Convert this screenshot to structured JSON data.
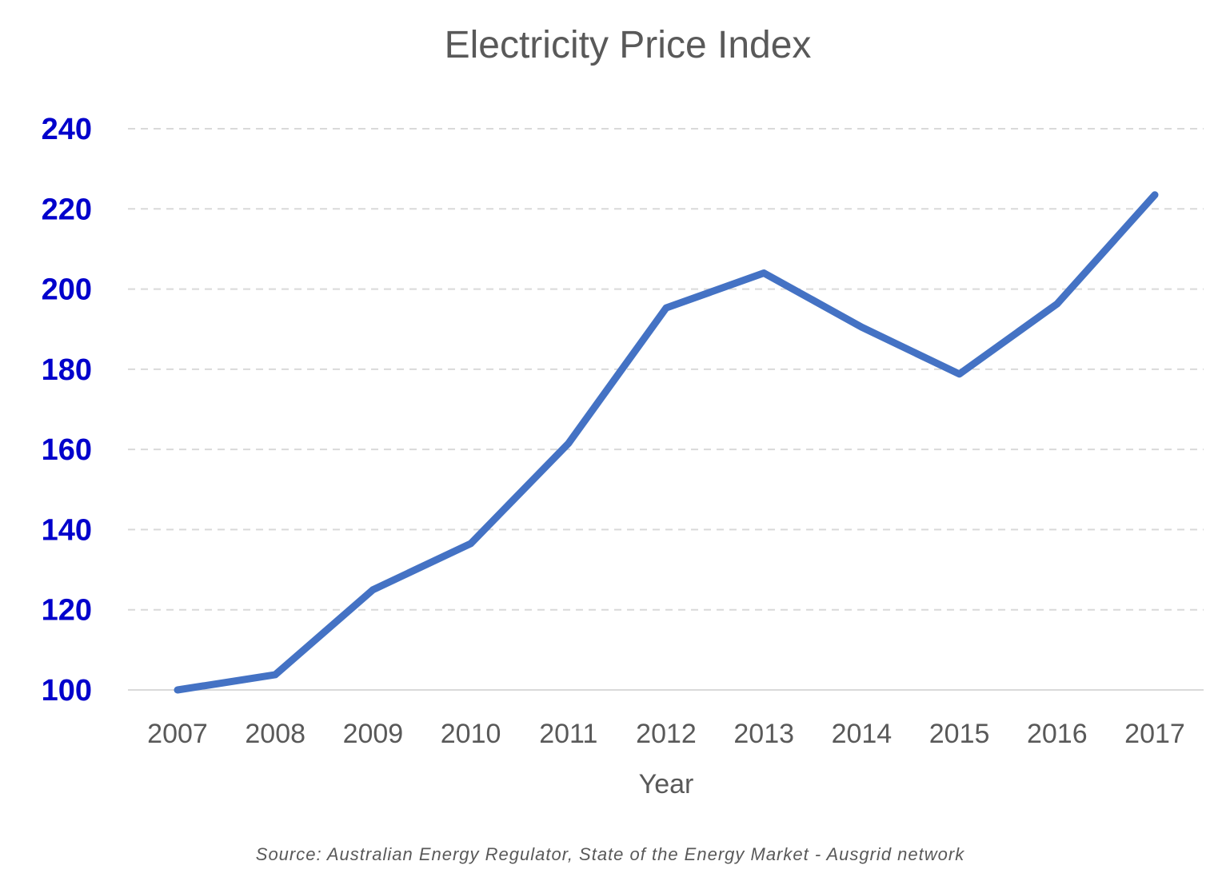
{
  "chart_data": {
    "type": "line",
    "title": "Electricity Price Index",
    "xlabel": "Year",
    "ylabel": "",
    "categories": [
      "2007",
      "2008",
      "2009",
      "2010",
      "2011",
      "2012",
      "2013",
      "2014",
      "2015",
      "2016",
      "2017"
    ],
    "series": [
      {
        "values": [
          100,
          103.8,
          125,
          136.5,
          161.5,
          195.3,
          204,
          190.5,
          178.8,
          196.3,
          223.5
        ],
        "color": "#4472c4"
      }
    ],
    "ylim": [
      100,
      240
    ],
    "yticks": [
      "100",
      "120",
      "140",
      "160",
      "180",
      "200",
      "220",
      "240"
    ],
    "grid": true,
    "grid_style": "dashed",
    "legend": "none",
    "source": "Source: Australian Energy Regulator, State of the Energy Market - Ausgrid network",
    "colors": {
      "line": "#4472c4",
      "y_tick_labels": "#0000cc",
      "text": "#595959",
      "gridline": "#d9d9d9"
    }
  }
}
